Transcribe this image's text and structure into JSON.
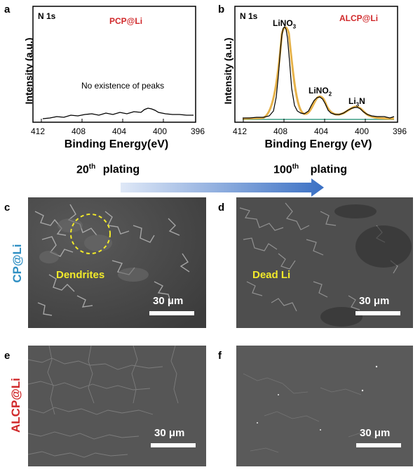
{
  "panels": {
    "a": {
      "letter": "a",
      "corner": "N 1s",
      "sample": "PCP@Li",
      "note": "No existence of peaks",
      "ylabel": "Intensity (a.u.)",
      "xlabel": "Binding Energy(eV)",
      "xticks": [
        "412",
        "408",
        "404",
        "400",
        "396"
      ]
    },
    "b": {
      "letter": "b",
      "corner": "N 1s",
      "sample": "ALCP@Li",
      "ylabel": "Intensity (a.u.)",
      "xlabel": "Binding Energy (eV)",
      "xticks": [
        "412",
        "408",
        "404",
        "400",
        "396"
      ],
      "peaks": [
        {
          "base": "LiNO",
          "sub": "3",
          "tail": ""
        },
        {
          "base": "LiNO",
          "sub": "2",
          "tail": ""
        },
        {
          "base": "Li",
          "sub": "3",
          "tail": "N"
        }
      ]
    },
    "c": {
      "letter": "c",
      "annotation": "Dendrites",
      "scale": "30 μm"
    },
    "d": {
      "letter": "d",
      "annotation": "Dead Li",
      "scale": "30 μm"
    },
    "e": {
      "letter": "e",
      "scale": "30 μm"
    },
    "f": {
      "letter": "f",
      "scale": "30 μm"
    }
  },
  "plating": {
    "left_num": "20",
    "left_sup": "th",
    "left_word": "plating",
    "right_num": "100",
    "right_sup": "th",
    "right_word": "plating"
  },
  "row_labels": {
    "top": "CP@Li",
    "bottom": "ALCP@Li"
  },
  "colors": {
    "sample_label": "#d0282a",
    "cp_label": "#2f8fc3",
    "alcp_label": "#d0282a",
    "annotation": "#f2ea2a",
    "arrow_start": "#dfe8f7",
    "arrow_end": "#3a70c4",
    "fit_line": "#e6b24a",
    "baseline": "#6fb9a6"
  },
  "chart_data": [
    {
      "type": "line",
      "title": "",
      "xlabel": "Binding Energy(eV)",
      "ylabel": "Intensity (a.u.)",
      "xlim": [
        412,
        396
      ],
      "x_reversed": true,
      "series": [
        {
          "x": [
            412,
            410,
            408,
            406,
            404,
            402,
            400.5,
            399,
            398,
            396
          ],
          "y": [
            0.05,
            0.06,
            0.07,
            0.08,
            0.08,
            0.08,
            0.12,
            0.08,
            0.07,
            0.07
          ]
        }
      ]
    },
    {
      "type": "line",
      "title": "",
      "xlabel": "Binding Energy (eV)",
      "ylabel": "Intensity (a.u.)",
      "xlim": [
        412,
        396
      ],
      "x_reversed": true,
      "series": [
        {
          "name": "",
          "x": [
            412,
            410,
            409,
            408,
            407,
            406,
            405,
            404,
            403,
            402,
            401,
            400,
            399,
            398,
            396
          ],
          "y": [
            0.02,
            0.04,
            0.3,
            0.97,
            0.55,
            0.1,
            0.15,
            0.32,
            0.15,
            0.1,
            0.16,
            0.2,
            0.16,
            0.08,
            0.03
          ]
        }
      ]
    }
  ]
}
